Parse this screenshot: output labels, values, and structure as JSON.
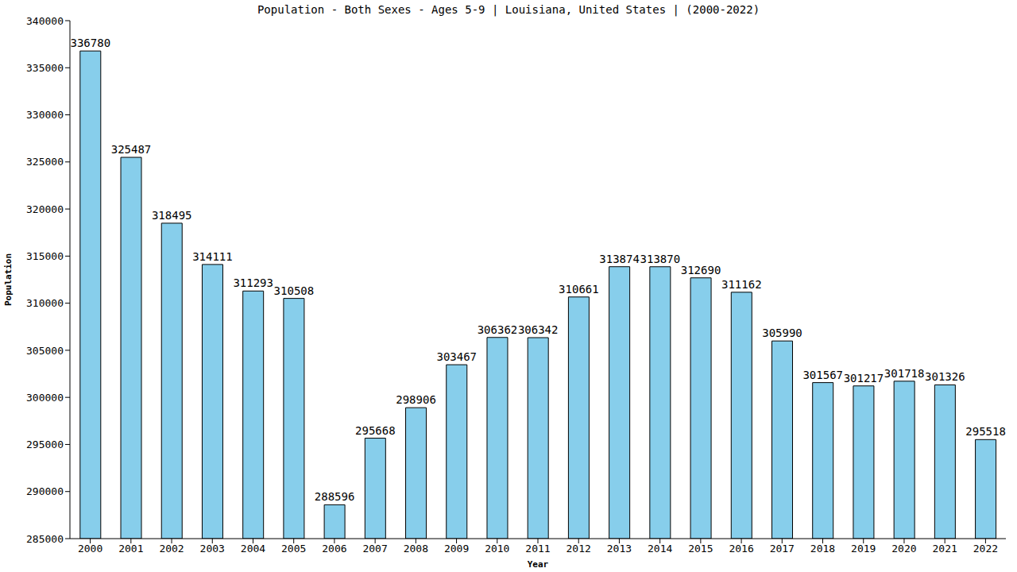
{
  "chart_data": {
    "type": "bar",
    "title": "Population - Both Sexes - Ages 5-9 | Louisiana, United States |  (2000-2022)",
    "xlabel": "Year",
    "ylabel": "Population",
    "categories": [
      "2000",
      "2001",
      "2002",
      "2003",
      "2004",
      "2005",
      "2006",
      "2007",
      "2008",
      "2009",
      "2010",
      "2011",
      "2012",
      "2013",
      "2014",
      "2015",
      "2016",
      "2017",
      "2018",
      "2019",
      "2020",
      "2021",
      "2022"
    ],
    "values": [
      336780,
      325487,
      318495,
      314111,
      311293,
      310508,
      288596,
      295668,
      298906,
      303467,
      306362,
      306342,
      310661,
      313874,
      313870,
      312690,
      311162,
      305990,
      301567,
      301217,
      301718,
      301326,
      295518
    ],
    "color": "#87ceeb",
    "ylim": [
      285000,
      340000
    ],
    "yticks": [
      285000,
      290000,
      295000,
      300000,
      305000,
      310000,
      315000,
      320000,
      325000,
      330000,
      335000,
      340000
    ],
    "grid": false,
    "data_labels": true
  }
}
